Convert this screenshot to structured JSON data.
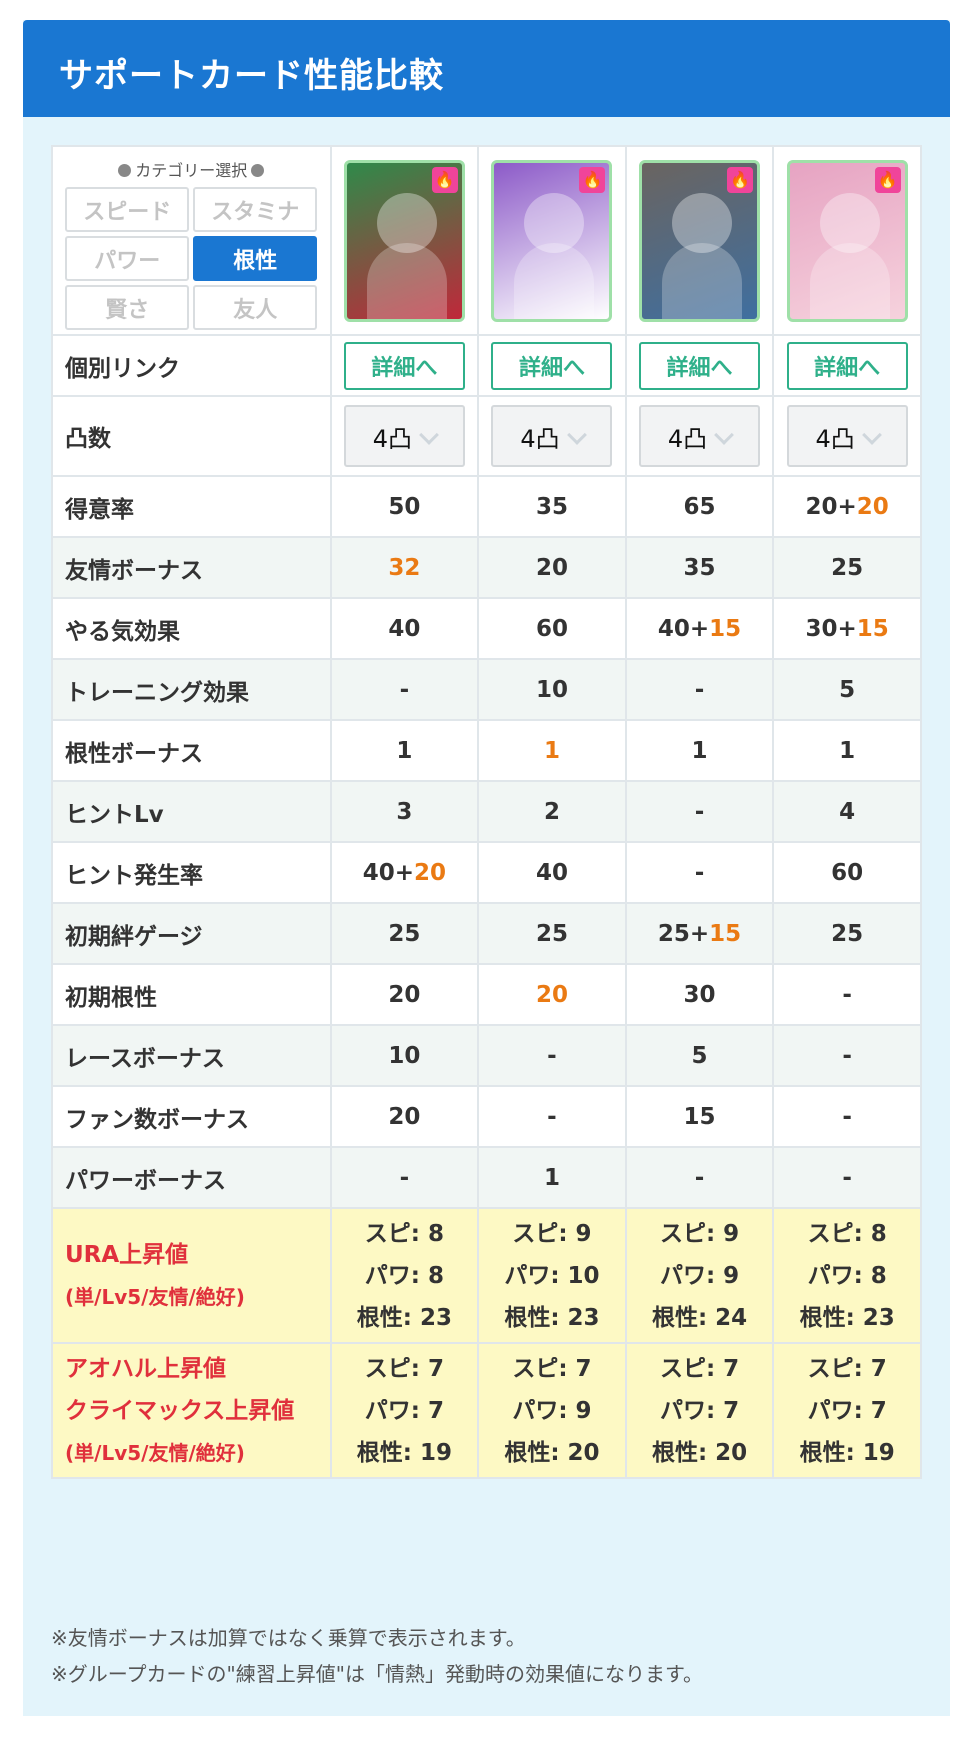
{
  "header": {
    "title": "サポートカード性能比較"
  },
  "category": {
    "title": "カテゴリー選択",
    "options": [
      "スピード",
      "スタミナ",
      "パワー",
      "根性",
      "賢さ",
      "友人"
    ],
    "selected": "根性"
  },
  "cards": [
    {
      "name": "card-1",
      "bg": "#2f8a4a",
      "accent": "#c0283a"
    },
    {
      "name": "card-2",
      "bg": "#8c5ac8",
      "accent": "#ffffff"
    },
    {
      "name": "card-3",
      "bg": "#6a6460",
      "accent": "#3f6fa0"
    },
    {
      "name": "card-4",
      "bg": "#e6a3c2",
      "accent": "#f6d2dd"
    }
  ],
  "links": {
    "label": "個別リンク",
    "button": "詳細へ"
  },
  "limit_break": {
    "label": "凸数",
    "values": [
      "4凸",
      "4凸",
      "4凸",
      "4凸"
    ]
  },
  "rows": [
    {
      "label": "得意率",
      "cells": [
        [
          "50",
          ""
        ],
        [
          "35",
          ""
        ],
        [
          "65",
          ""
        ],
        [
          "20+",
          "20"
        ]
      ]
    },
    {
      "label": "友情ボーナス",
      "cells": [
        [
          "",
          "32"
        ],
        [
          "20",
          ""
        ],
        [
          "35",
          ""
        ],
        [
          "25",
          ""
        ]
      ]
    },
    {
      "label": "やる気効果",
      "cells": [
        [
          "40",
          ""
        ],
        [
          "60",
          ""
        ],
        [
          "40+",
          "15"
        ],
        [
          "30+",
          "15"
        ]
      ]
    },
    {
      "label": "トレーニング効果",
      "cells": [
        [
          "-",
          ""
        ],
        [
          "10",
          ""
        ],
        [
          "-",
          ""
        ],
        [
          "5",
          ""
        ]
      ]
    },
    {
      "label": "根性ボーナス",
      "cells": [
        [
          "1",
          ""
        ],
        [
          "",
          "1"
        ],
        [
          "1",
          ""
        ],
        [
          "1",
          ""
        ]
      ]
    },
    {
      "label": "ヒントLv",
      "cells": [
        [
          "3",
          ""
        ],
        [
          "2",
          ""
        ],
        [
          "-",
          ""
        ],
        [
          "4",
          ""
        ]
      ]
    },
    {
      "label": "ヒント発生率",
      "cells": [
        [
          "40+",
          "20"
        ],
        [
          "40",
          ""
        ],
        [
          "-",
          ""
        ],
        [
          "60",
          ""
        ]
      ]
    },
    {
      "label": "初期絆ゲージ",
      "cells": [
        [
          "25",
          ""
        ],
        [
          "25",
          ""
        ],
        [
          "25+",
          "15"
        ],
        [
          "25",
          ""
        ]
      ]
    },
    {
      "label": "初期根性",
      "cells": [
        [
          "20",
          ""
        ],
        [
          "",
          "20"
        ],
        [
          "30",
          ""
        ],
        [
          "-",
          ""
        ]
      ]
    },
    {
      "label": "レースボーナス",
      "cells": [
        [
          "10",
          ""
        ],
        [
          "-",
          ""
        ],
        [
          "5",
          ""
        ],
        [
          "-",
          ""
        ]
      ]
    },
    {
      "label": "ファン数ボーナス",
      "cells": [
        [
          "20",
          ""
        ],
        [
          "-",
          ""
        ],
        [
          "15",
          ""
        ],
        [
          "-",
          ""
        ]
      ]
    },
    {
      "label": "パワーボーナス",
      "cells": [
        [
          "-",
          ""
        ],
        [
          "1",
          ""
        ],
        [
          "-",
          ""
        ],
        [
          "-",
          ""
        ]
      ]
    }
  ],
  "ura": {
    "label_line1": "URA上昇値",
    "label_line2": "(単/Lv5/友情/絶好)",
    "cells": [
      [
        "スピ: 8",
        "パワ: 8",
        "根性: 23"
      ],
      [
        "スピ: 9",
        "パワ: 10",
        "根性: 23"
      ],
      [
        "スピ: 9",
        "パワ: 9",
        "根性: 24"
      ],
      [
        "スピ: 8",
        "パワ: 8",
        "根性: 23"
      ]
    ]
  },
  "aoharu": {
    "label_line1": "アオハル上昇値",
    "label_line2": "クライマックス上昇値",
    "label_line3": "(単/Lv5/友情/絶好)",
    "cells": [
      [
        "スピ: 7",
        "パワ: 7",
        "根性: 19"
      ],
      [
        "スピ: 7",
        "パワ: 9",
        "根性: 20"
      ],
      [
        "スピ: 7",
        "パワ: 7",
        "根性: 20"
      ],
      [
        "スピ: 7",
        "パワ: 7",
        "根性: 19"
      ]
    ]
  },
  "notes": [
    "※友情ボーナスは加算ではなく乗算で表示されます。",
    "※グループカードの\"練習上昇値\"は「情熱」発動時の効果値になります。"
  ]
}
